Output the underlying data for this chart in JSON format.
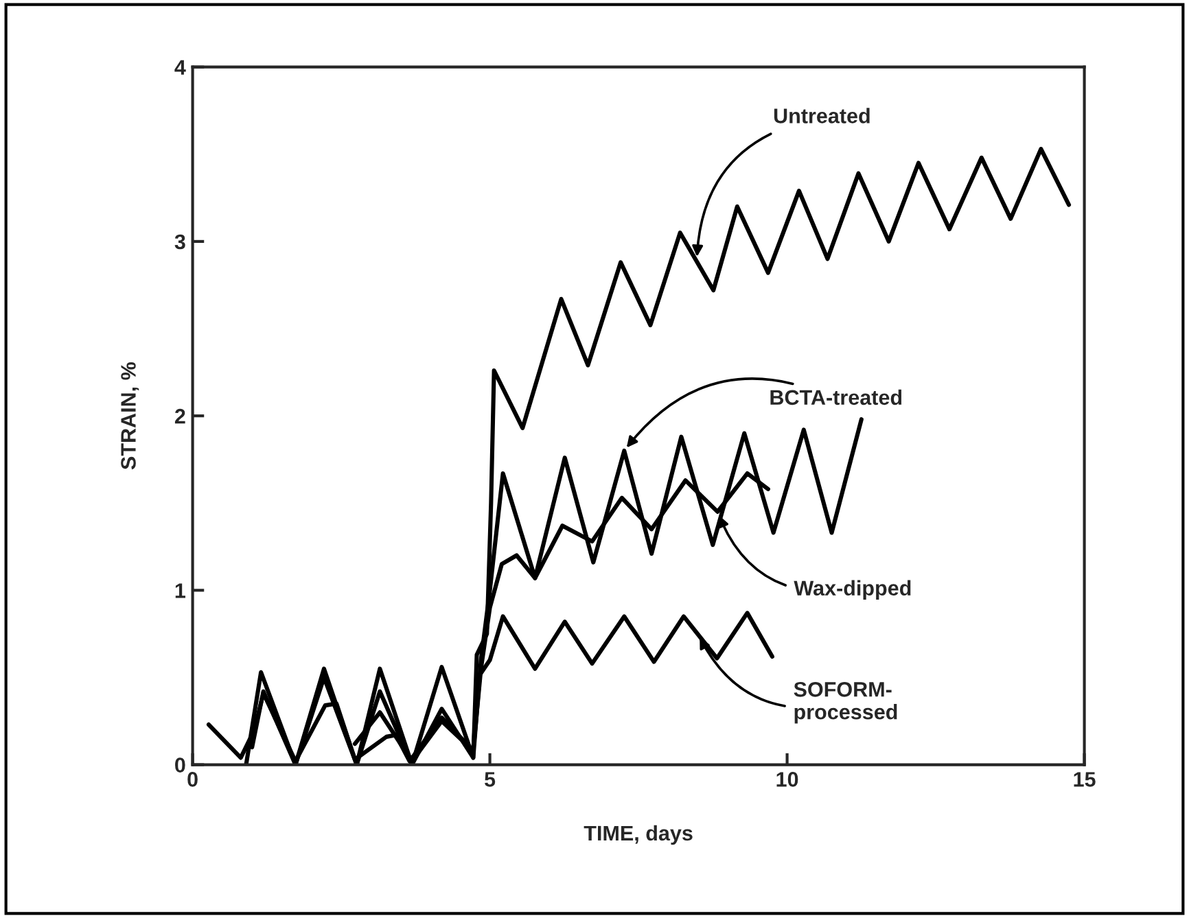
{
  "chart_data": {
    "type": "line",
    "xlabel": "TIME, days",
    "ylabel": "STRAIN, %",
    "xlim": [
      0,
      15
    ],
    "xticks": [
      0,
      5,
      10,
      15
    ],
    "ylim": [
      0,
      4
    ],
    "yticks": [
      0,
      1,
      2,
      3,
      4
    ],
    "grid": false,
    "marker": "none",
    "line_style": "solid",
    "series": [
      {
        "color": "#000000",
        "x": [
          0.9,
          1.15,
          1.73,
          2.21,
          2.76,
          3.15,
          3.69,
          4.19,
          4.72,
          4.78,
          4.95,
          5.02,
          5.07,
          5.55,
          6.2,
          6.65,
          7.2,
          7.7,
          8.2,
          8.76,
          9.16,
          9.68,
          10.2,
          10.68,
          11.2,
          11.71,
          12.21,
          12.73,
          13.27,
          13.76,
          14.27,
          14.74
        ],
        "values": [
          0.0,
          0.53,
          0.0,
          0.55,
          0.0,
          0.55,
          0.0,
          0.56,
          0.04,
          0.63,
          0.75,
          1.5,
          2.26,
          1.93,
          2.67,
          2.29,
          2.88,
          2.52,
          3.05,
          2.72,
          3.2,
          2.82,
          3.29,
          2.9,
          3.39,
          3.0,
          3.45,
          3.07,
          3.48,
          3.13,
          3.53,
          3.21
        ]
      },
      {
        "color": "#000000",
        "x": [
          1.0,
          1.19,
          1.73,
          2.21,
          2.76,
          3.15,
          3.69,
          4.19,
          4.72,
          4.85,
          5.0,
          5.22,
          5.76,
          6.26,
          6.74,
          7.26,
          7.72,
          8.22,
          8.75,
          9.28,
          9.77,
          10.28,
          10.75,
          11.25
        ],
        "values": [
          0.1,
          0.42,
          0.0,
          0.5,
          0.0,
          0.42,
          0.0,
          0.32,
          0.04,
          0.6,
          1.0,
          1.67,
          1.07,
          1.76,
          1.16,
          1.8,
          1.21,
          1.88,
          1.26,
          1.9,
          1.33,
          1.92,
          1.33,
          1.98
        ]
      },
      {
        "color": "#000000",
        "x": [
          0.27,
          0.81,
          1.04,
          1.19,
          1.73,
          2.23,
          2.42,
          2.73,
          3.26,
          3.42,
          3.65,
          4.19,
          4.72,
          4.85,
          5.0,
          5.2,
          5.45,
          5.76,
          6.22,
          6.72,
          7.22,
          7.72,
          8.29,
          8.83,
          9.33,
          9.68
        ],
        "values": [
          0.23,
          0.04,
          0.2,
          0.41,
          0.02,
          0.34,
          0.35,
          0.03,
          0.16,
          0.17,
          0.02,
          0.27,
          0.08,
          0.55,
          0.9,
          1.15,
          1.2,
          1.07,
          1.37,
          1.28,
          1.53,
          1.35,
          1.63,
          1.45,
          1.67,
          1.58
        ]
      },
      {
        "color": "#000000",
        "x": [
          2.73,
          3.15,
          3.69,
          4.19,
          4.72,
          4.8,
          5.0,
          5.22,
          5.76,
          6.26,
          6.72,
          7.26,
          7.76,
          8.26,
          8.82,
          9.33,
          9.75
        ],
        "values": [
          0.12,
          0.3,
          0.02,
          0.25,
          0.08,
          0.5,
          0.6,
          0.85,
          0.55,
          0.82,
          0.58,
          0.85,
          0.59,
          0.85,
          0.61,
          0.87,
          0.62
        ]
      }
    ],
    "annotations": [
      {
        "text": "Untreated",
        "x": 8.48,
        "y": 2.89
      },
      {
        "text": "BCTA-treated",
        "x": 7.26,
        "y": 1.8
      },
      {
        "text": "Wax-dipped",
        "x": 8.83,
        "y": 1.45
      },
      {
        "text": "SOFORM-\nprocessed",
        "x": 8.5,
        "y": 0.75
      }
    ]
  }
}
